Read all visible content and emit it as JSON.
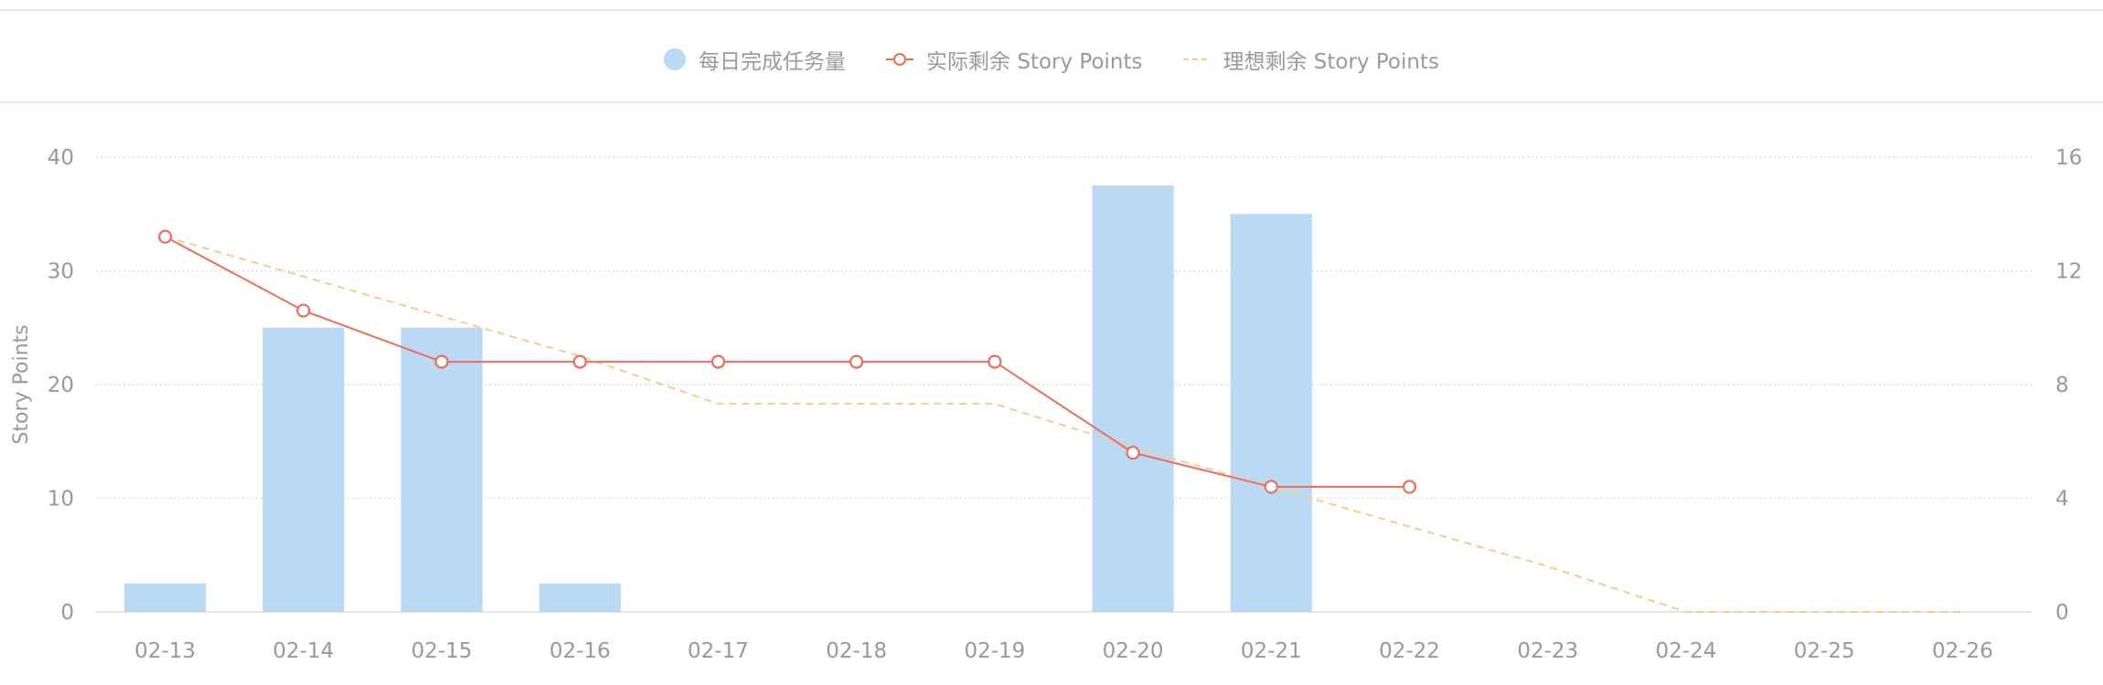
{
  "legend": {
    "bar_label": "每日完成任务量",
    "actual_label": "实际剩余 Story Points",
    "ideal_label": "理想剩余 Story Points"
  },
  "colors": {
    "bar": "#bad9f5",
    "actual": "#ea6e5a",
    "ideal": "#f5cd8a",
    "grid": "#dddddd",
    "text": "#999999"
  },
  "chart_data": {
    "type": "bar",
    "categories": [
      "02-13",
      "02-14",
      "02-15",
      "02-16",
      "02-17",
      "02-18",
      "02-19",
      "02-20",
      "02-21",
      "02-22",
      "02-23",
      "02-24",
      "02-25",
      "02-26"
    ],
    "series": [
      {
        "name": "每日完成任务量",
        "type": "bar",
        "axis": "right",
        "values": [
          1,
          10,
          10,
          1,
          0,
          0,
          0,
          15,
          14,
          null,
          null,
          null,
          null,
          null
        ]
      },
      {
        "name": "实际剩余 Story Points",
        "type": "line",
        "axis": "left",
        "values": [
          33,
          26.5,
          22,
          22,
          22,
          22,
          22,
          14,
          11,
          11,
          null,
          null,
          null,
          null
        ]
      },
      {
        "name": "理想剩余 Story Points",
        "type": "line",
        "axis": "left",
        "dashed": true,
        "values": [
          33,
          29.5,
          26,
          22.5,
          18.3,
          18.3,
          18.3,
          14.5,
          11,
          7.5,
          4,
          0,
          0,
          0
        ]
      }
    ],
    "ylabel": "Story Points",
    "ylim": [
      0,
      40
    ],
    "yticks": [
      0,
      10,
      20,
      30,
      40
    ],
    "y2label": "",
    "y2lim": [
      0,
      16
    ],
    "y2ticks": [
      0,
      4,
      8,
      12,
      16
    ],
    "grid": true,
    "legend_position": "top-center"
  }
}
